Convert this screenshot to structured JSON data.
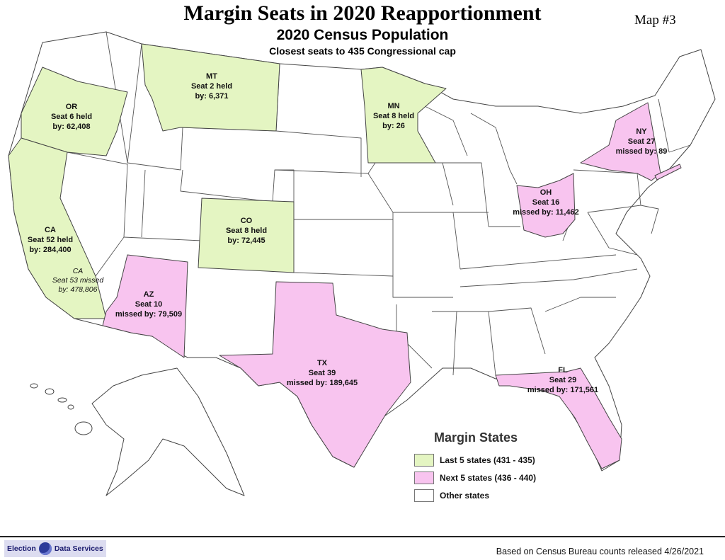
{
  "header": {
    "title": "Margin Seats in 2020 Reapportionment",
    "subtitle": "2020 Census Population",
    "subsubtitle": "Closest seats to 435 Congressional cap",
    "map_number": "Map #3"
  },
  "colors": {
    "last5": "#e4f5c2",
    "next5": "#f8c4ef",
    "other": "#ffffff",
    "border": "#444444"
  },
  "states": {
    "or": {
      "abbr": "OR",
      "line1": "Seat 6 held",
      "line2": "by: 62,408"
    },
    "mt": {
      "abbr": "MT",
      "line1": "Seat 2 held",
      "line2": "by: 6,371"
    },
    "mn": {
      "abbr": "MN",
      "line1": "Seat 8 held",
      "line2": "by: 26"
    },
    "ny": {
      "abbr": "NY",
      "line1": "Seat 27",
      "line2": "missed by: 89"
    },
    "oh": {
      "abbr": "OH",
      "line1": "Seat 16",
      "line2": "missed by: 11,462"
    },
    "co": {
      "abbr": "CO",
      "line1": "Seat 8 held",
      "line2": "by: 72,445"
    },
    "ca": {
      "abbr": "CA",
      "line1": "Seat 52 held",
      "line2": "by: 284,400"
    },
    "ca53": {
      "abbr": "CA",
      "line1": "Seat 53 missed",
      "line2": "by: 478,806"
    },
    "az": {
      "abbr": "AZ",
      "line1": "Seat 10",
      "line2": "missed by: 79,509"
    },
    "tx": {
      "abbr": "TX",
      "line1": "Seat 39",
      "line2": "missed by: 189,645"
    },
    "fl": {
      "abbr": "FL",
      "line1": "Seat 29",
      "line2": "missed by: 171,561"
    }
  },
  "legend": {
    "title": "Margin States",
    "items": [
      {
        "label": "Last 5 states (431 - 435)",
        "color": "#e4f5c2"
      },
      {
        "label": "Next 5 states (436 - 440)",
        "color": "#f8c4ef"
      },
      {
        "label": "Other states",
        "color": "#ffffff"
      }
    ]
  },
  "footer": {
    "logo_left": "Election",
    "logo_right": "Data Services",
    "source": "Based on Census Bureau counts released 4/26/2021"
  }
}
